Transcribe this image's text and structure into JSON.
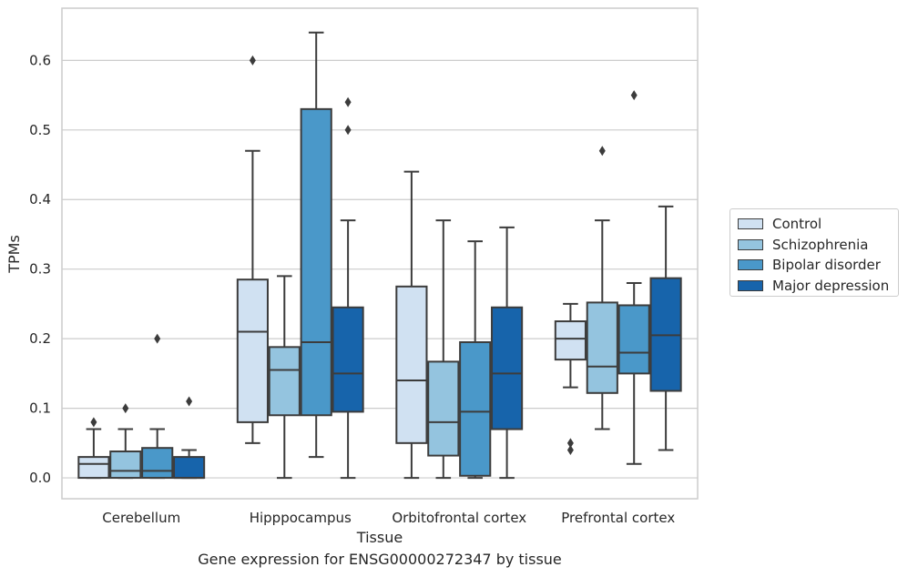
{
  "chart_data": {
    "type": "box",
    "title": "",
    "xlabel": "Tissue",
    "ylabel": "TPMs",
    "ylim": [
      -0.03,
      0.675
    ],
    "yticks": [
      0.0,
      0.1,
      0.2,
      0.3,
      0.4,
      0.5,
      0.6
    ],
    "ytick_labels": [
      "0.0",
      "0.1",
      "0.2",
      "0.3",
      "0.4",
      "0.5",
      "0.6"
    ],
    "grid": "horizontal",
    "legend_position": "right",
    "categories": [
      "Cerebellum",
      "Hipppocampus",
      "Orbitofrontal cortex",
      "Prefrontal cortex"
    ],
    "series": [
      {
        "name": "Control",
        "color": "#d0e1f2",
        "boxes": [
          {
            "whisker_low": 0.0,
            "q1": 0.0,
            "median": 0.02,
            "q3": 0.03,
            "whisker_high": 0.07,
            "outliers": [
              0.08
            ]
          },
          {
            "whisker_low": 0.05,
            "q1": 0.08,
            "median": 0.21,
            "q3": 0.285,
            "whisker_high": 0.47,
            "outliers": [
              0.6
            ]
          },
          {
            "whisker_low": 0.0,
            "q1": 0.05,
            "median": 0.14,
            "q3": 0.275,
            "whisker_high": 0.44,
            "outliers": []
          },
          {
            "whisker_low": 0.13,
            "q1": 0.17,
            "median": 0.2,
            "q3": 0.225,
            "whisker_high": 0.25,
            "outliers": [
              0.04,
              0.05
            ]
          }
        ]
      },
      {
        "name": "Schizophrenia",
        "color": "#94c4df",
        "boxes": [
          {
            "whisker_low": 0.0,
            "q1": 0.0,
            "median": 0.01,
            "q3": 0.038,
            "whisker_high": 0.07,
            "outliers": [
              0.1
            ]
          },
          {
            "whisker_low": 0.0,
            "q1": 0.09,
            "median": 0.155,
            "q3": 0.188,
            "whisker_high": 0.29,
            "outliers": []
          },
          {
            "whisker_low": 0.0,
            "q1": 0.032,
            "median": 0.08,
            "q3": 0.167,
            "whisker_high": 0.37,
            "outliers": []
          },
          {
            "whisker_low": 0.07,
            "q1": 0.122,
            "median": 0.16,
            "q3": 0.252,
            "whisker_high": 0.37,
            "outliers": [
              0.47
            ]
          }
        ]
      },
      {
        "name": "Bipolar disorder",
        "color": "#4a98c9",
        "boxes": [
          {
            "whisker_low": 0.0,
            "q1": 0.0,
            "median": 0.01,
            "q3": 0.043,
            "whisker_high": 0.07,
            "outliers": [
              0.2
            ]
          },
          {
            "whisker_low": 0.03,
            "q1": 0.09,
            "median": 0.195,
            "q3": 0.53,
            "whisker_high": 0.64,
            "outliers": []
          },
          {
            "whisker_low": 0.0,
            "q1": 0.003,
            "median": 0.095,
            "q3": 0.195,
            "whisker_high": 0.34,
            "outliers": []
          },
          {
            "whisker_low": 0.02,
            "q1": 0.15,
            "median": 0.18,
            "q3": 0.248,
            "whisker_high": 0.28,
            "outliers": [
              0.55
            ]
          }
        ]
      },
      {
        "name": "Major depression",
        "color": "#1764ab",
        "boxes": [
          {
            "whisker_low": 0.0,
            "q1": 0.0,
            "median": 0.0,
            "q3": 0.03,
            "whisker_high": 0.04,
            "outliers": [
              0.11
            ]
          },
          {
            "whisker_low": 0.0,
            "q1": 0.095,
            "median": 0.15,
            "q3": 0.245,
            "whisker_high": 0.37,
            "outliers": [
              0.5,
              0.54
            ]
          },
          {
            "whisker_low": 0.0,
            "q1": 0.07,
            "median": 0.15,
            "q3": 0.245,
            "whisker_high": 0.36,
            "outliers": []
          },
          {
            "whisker_low": 0.04,
            "q1": 0.125,
            "median": 0.205,
            "q3": 0.287,
            "whisker_high": 0.39,
            "outliers": []
          }
        ]
      }
    ],
    "caption": "Gene expression for ENSG00000272347 by tissue"
  }
}
